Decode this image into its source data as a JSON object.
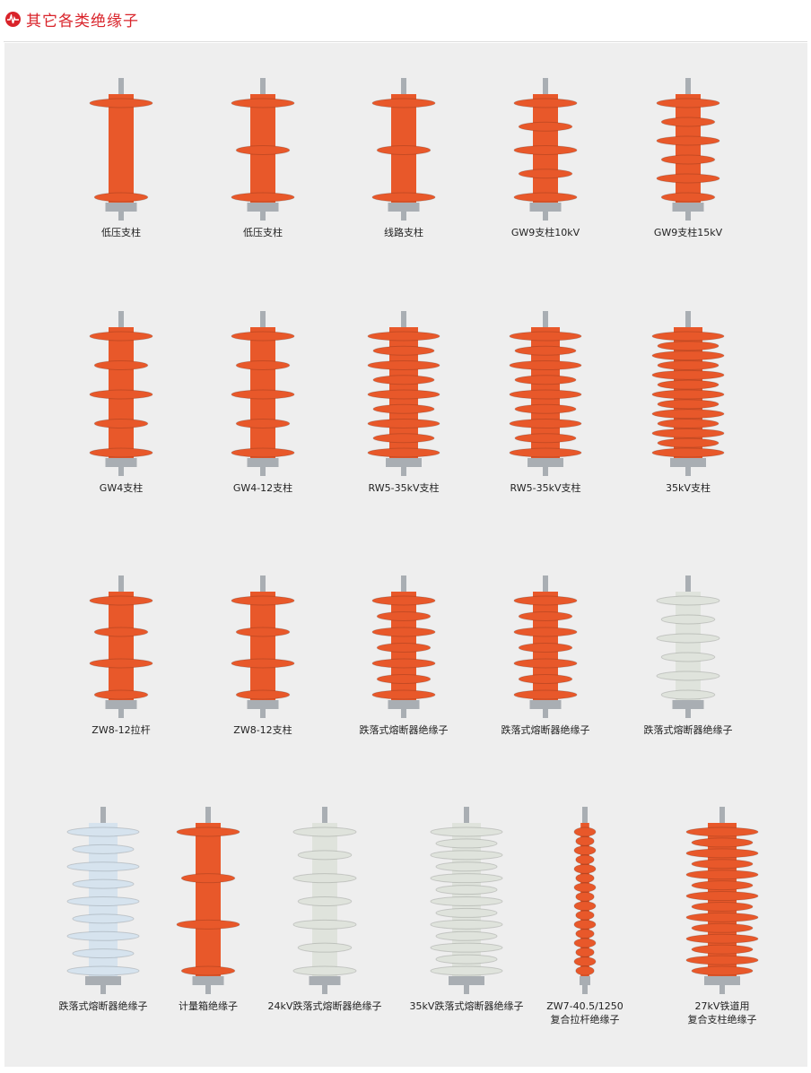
{
  "header": {
    "title": "其它各类绝缘子",
    "icon": "pulse-icon",
    "accent": "#d9232a"
  },
  "colors": {
    "orange": "#e8582a",
    "white": "#dfe3dc",
    "blue": "#d6e3ee",
    "metal": "#a9aeb3"
  },
  "rows": [
    [
      {
        "label": "低压支柱",
        "color": "orange"
      },
      {
        "label": "低压支柱",
        "color": "orange"
      },
      {
        "label": "线路支柱",
        "color": "orange"
      },
      {
        "label": "GW9支柱10kV",
        "color": "orange"
      },
      {
        "label": "GW9支柱15kV",
        "color": "orange"
      }
    ],
    [
      {
        "label": "GW4支柱",
        "color": "orange"
      },
      {
        "label": "GW4-12支柱",
        "color": "orange"
      },
      {
        "label": "RW5-35kV支柱",
        "color": "orange"
      },
      {
        "label": "RW5-35kV支柱",
        "color": "orange"
      },
      {
        "label": "35kV支柱",
        "color": "orange"
      }
    ],
    [
      {
        "label": "ZW8-12拉杆",
        "color": "orange"
      },
      {
        "label": "ZW8-12支柱",
        "color": "orange"
      },
      {
        "label": "跌落式熔断器绝缘子",
        "color": "orange"
      },
      {
        "label": "跌落式熔断器绝缘子",
        "color": "orange"
      },
      {
        "label": "跌落式熔断器绝缘子",
        "color": "white"
      }
    ],
    [
      {
        "label": "跌落式熔断器绝缘子",
        "color": "blue"
      },
      {
        "label": "计量箱绝缘子",
        "color": "orange"
      },
      {
        "label": "24kV跌落式熔断器绝缘子",
        "color": "white"
      },
      {
        "label": "35kV跌落式熔断器绝缘子",
        "color": "white"
      },
      {
        "label": "ZW7-40.5/1250",
        "label2": "复合拉杆绝缘子",
        "color": "orange"
      },
      {
        "label": "27kV铁道用",
        "label2": "复合支柱绝缘子",
        "color": "orange"
      }
    ]
  ]
}
